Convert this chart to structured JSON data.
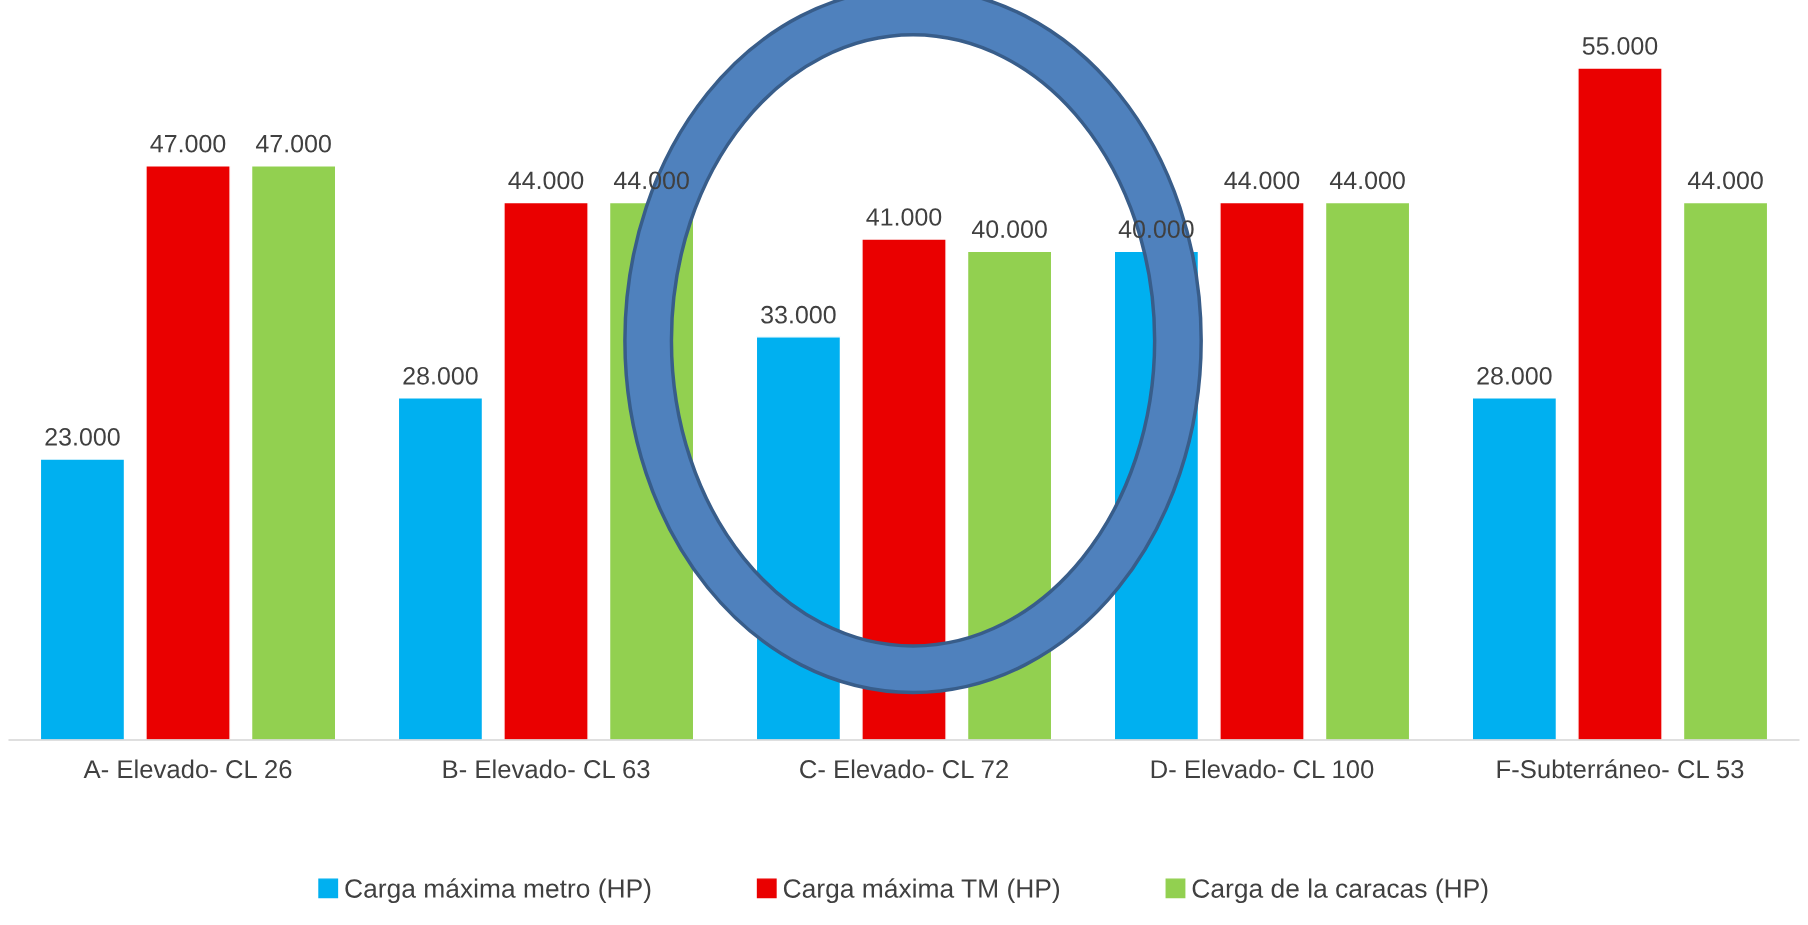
{
  "chart_data": {
    "type": "bar",
    "categories": [
      "A- Elevado- CL 26",
      "B- Elevado- CL 63",
      "C- Elevado- CL 72",
      "D- Elevado- CL 100",
      "F-Subterráneo- CL 53"
    ],
    "series": [
      {
        "name": "Carga máxima metro (HP)",
        "color": "#00b0f0",
        "values": [
          23000,
          28000,
          33000,
          40000,
          28000
        ],
        "value_labels": [
          "23.000",
          "28.000",
          "33.000",
          "40.000",
          "28.000"
        ]
      },
      {
        "name": "Carga máxima TM (HP)",
        "color": "#ea0000",
        "values": [
          47000,
          44000,
          41000,
          44000,
          55000
        ],
        "value_labels": [
          "47.000",
          "44.000",
          "41.000",
          "44.000",
          "55.000"
        ]
      },
      {
        "name": "Carga de la caracas (HP)",
        "color": "#92d050",
        "values": [
          47000,
          44000,
          40000,
          44000,
          44000
        ],
        "value_labels": [
          "47.000",
          "44.000",
          "40.000",
          "44.000",
          "44.000"
        ]
      }
    ],
    "legend": "bottom",
    "grid": false
  }
}
